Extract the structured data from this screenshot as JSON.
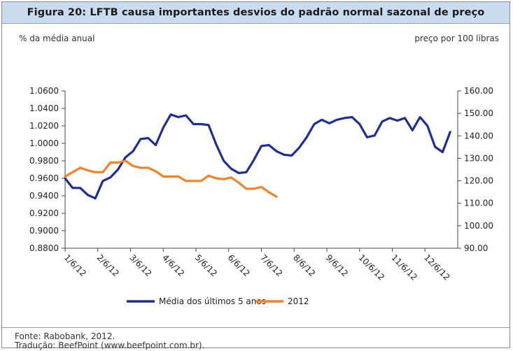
{
  "title": "Figura 20: LFTB causa importantes desvios do padrão normal sazonal de preço",
  "left_unit": "% da média anual",
  "right_unit": "preço por 100 libras",
  "source_line_1": "Fonte: Rabobank, 2012.",
  "source_line_2": "Tradução: BeefPoint (www.beefpoint.com.br).",
  "chart_data": {
    "type": "line",
    "x_labels": [
      "1/6/12",
      "2/6/12",
      "3/6/12",
      "4/6/12",
      "5/6/12",
      "6/6/12",
      "7/6/12",
      "8/6/12",
      "9/6/12",
      "10/6/12",
      "11/6/12",
      "12/6/12"
    ],
    "y_left_ticks": [
      "1.0600",
      "1.0400",
      "1.0200",
      "1.0000",
      "0.9800",
      "0.9600",
      "0.9400",
      "0.9200",
      "0.9000",
      "0.8800"
    ],
    "y_left_range": [
      0.88,
      1.06
    ],
    "y_right_ticks": [
      "160.00",
      "150.00",
      "140.00",
      "130.00",
      "120.00",
      "110.00",
      "100.00",
      "90.00"
    ],
    "y_right_range": [
      90,
      160
    ],
    "axis": "left",
    "colors": {
      "series1": "#1f2e96",
      "series2": "#f5822a"
    },
    "legend_position": "bottom",
    "series": [
      {
        "name": "Média dos últimos 5 anos",
        "color": "#1f2e96",
        "x_step_weeks": 1,
        "values": [
          0.96,
          0.949,
          0.949,
          0.941,
          0.937,
          0.957,
          0.961,
          0.97,
          0.984,
          0.991,
          1.005,
          1.006,
          0.998,
          1.018,
          1.033,
          1.03,
          1.032,
          1.022,
          1.022,
          1.021,
          0.999,
          0.98,
          0.971,
          0.966,
          0.967,
          0.981,
          0.997,
          0.998,
          0.991,
          0.987,
          0.986,
          0.995,
          1.007,
          1.022,
          1.027,
          1.023,
          1.027,
          1.029,
          1.03,
          1.022,
          1.007,
          1.009,
          1.025,
          1.029,
          1.026,
          1.029,
          1.015,
          1.03,
          1.02,
          0.996,
          0.99,
          1.013
        ]
      },
      {
        "name": "2012",
        "color": "#f5822a",
        "x_step_weeks": 1,
        "values": [
          0.962,
          0.967,
          0.972,
          0.969,
          0.967,
          0.967,
          0.978,
          0.978,
          0.98,
          0.974,
          0.972,
          0.972,
          0.968,
          0.962,
          0.962,
          0.962,
          0.957,
          0.957,
          0.957,
          0.963,
          0.96,
          0.959,
          0.961,
          0.955,
          0.948,
          0.948,
          0.95,
          0.944,
          0.939
        ]
      }
    ]
  }
}
